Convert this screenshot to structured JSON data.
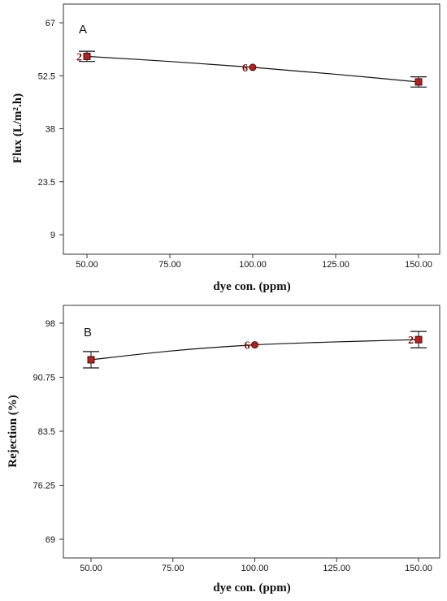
{
  "chart_data": [
    {
      "type": "line",
      "panel_label": "A",
      "xlabel": "dye con. (ppm)",
      "ylabel": "Flux (L/m².h)",
      "x_ticks": [
        "50.00",
        "75.00",
        "100.00",
        "125.00",
        "150.00"
      ],
      "y_ticks": [
        "67",
        "52.5",
        "38",
        "23.5",
        "9"
      ],
      "xlim": [
        50,
        150
      ],
      "ylim": [
        9,
        67
      ],
      "curve_points": [
        [
          50,
          57.8
        ],
        [
          75,
          56.4
        ],
        [
          100,
          54.8
        ],
        [
          125,
          52.9
        ],
        [
          150,
          50.8
        ]
      ],
      "points": [
        {
          "x": 50,
          "y": 57.8,
          "err": 1.4,
          "marker": "square",
          "count_label": "2"
        },
        {
          "x": 100,
          "y": 54.8,
          "err": 0,
          "marker": "circle",
          "count_label": "6"
        },
        {
          "x": 150,
          "y": 50.8,
          "err": 1.4,
          "marker": "square",
          "count_label": ""
        }
      ]
    },
    {
      "type": "line",
      "panel_label": "B",
      "xlabel": "dye con. (ppm)",
      "ylabel": "Rejection (%)",
      "x_ticks": [
        "50.00",
        "75.00",
        "100.00",
        "125.00",
        "150.00"
      ],
      "y_ticks": [
        "98",
        "90.75",
        "83.5",
        "76.25",
        "69"
      ],
      "xlim": [
        50,
        150
      ],
      "ylim": [
        69,
        98
      ],
      "curve_points": [
        [
          50,
          93.1
        ],
        [
          75,
          94.3
        ],
        [
          100,
          95.1
        ],
        [
          125,
          95.5
        ],
        [
          150,
          95.8
        ]
      ],
      "points": [
        {
          "x": 50,
          "y": 93.1,
          "err": 1.1,
          "marker": "square",
          "count_label": ""
        },
        {
          "x": 100,
          "y": 95.1,
          "err": 0,
          "marker": "circle",
          "count_label": "6"
        },
        {
          "x": 150,
          "y": 95.8,
          "err": 1.1,
          "marker": "square",
          "count_label": "2"
        }
      ]
    }
  ],
  "colors": {
    "marker_fill": "#b22222",
    "marker_stroke": "#4a0a0a",
    "line": "#111111",
    "axis": "#333333"
  }
}
